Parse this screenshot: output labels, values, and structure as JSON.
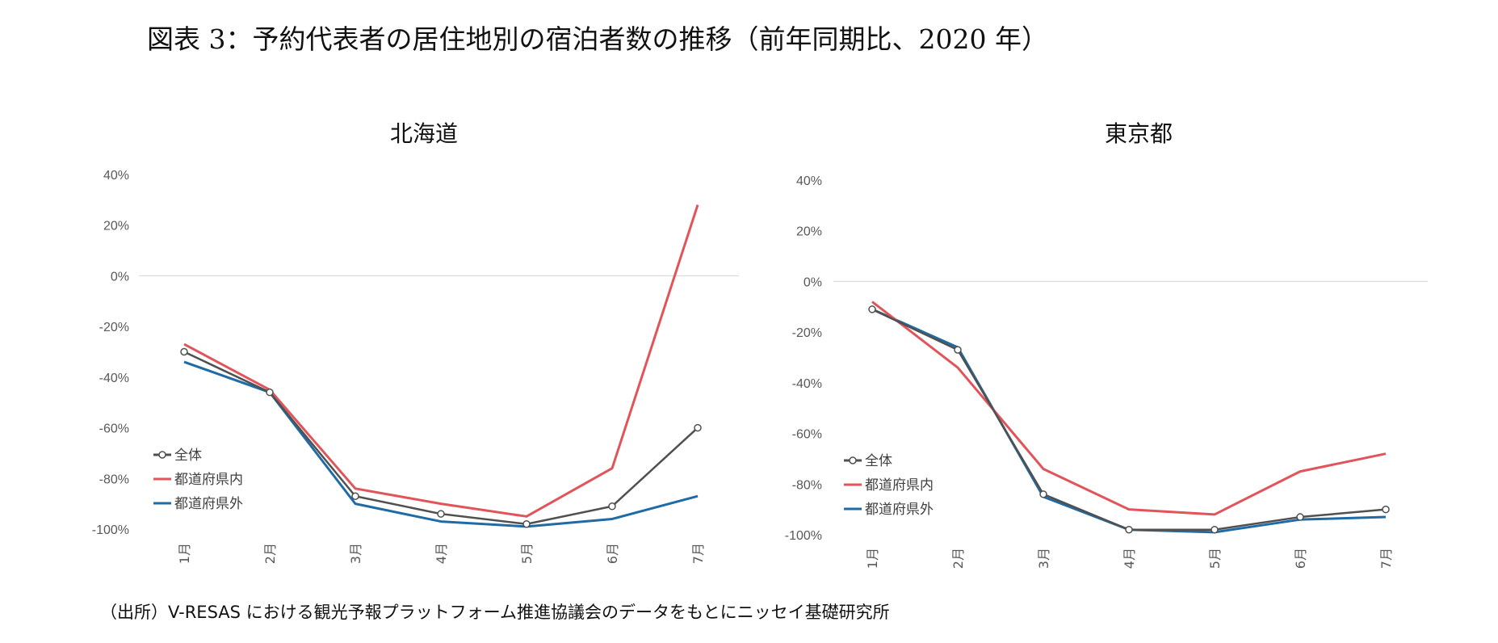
{
  "figure": {
    "title": "図表 3：予約代表者の居住地別の宿泊者数の推移（前年同期比、2020 年）",
    "source": "（出所）V-RESAS における観光予報プラットフォーム推進協議会のデータをもとにニッセイ基礎研究所"
  },
  "chart_data": [
    {
      "type": "line",
      "title": "北海道",
      "categories": [
        "1月",
        "2月",
        "3月",
        "4月",
        "5月",
        "6月",
        "7月"
      ],
      "ylim": [
        -100,
        40
      ],
      "yticks": [
        "40%",
        "20%",
        "0%",
        "-20%",
        "-40%",
        "-60%",
        "-80%",
        "-100%"
      ],
      "grid": "zero-line only",
      "legend_position": "bottom-left",
      "series": [
        {
          "name": "全体",
          "values": [
            -30,
            -46,
            -87,
            -94,
            -98,
            -91,
            -60
          ],
          "color": "#505050",
          "markers": true
        },
        {
          "name": "都道府県内",
          "values": [
            -27,
            -45,
            -84,
            -90,
            -95,
            -76,
            28
          ],
          "color": "#E0545A",
          "markers": false
        },
        {
          "name": "都道府県外",
          "values": [
            -34,
            -46,
            -90,
            -97,
            -99,
            -96,
            -87
          ],
          "color": "#1F6BA5",
          "markers": false
        }
      ]
    },
    {
      "type": "line",
      "title": "東京都",
      "categories": [
        "1月",
        "2月",
        "3月",
        "4月",
        "5月",
        "6月",
        "7月"
      ],
      "ylim": [
        -100,
        40
      ],
      "yticks": [
        "40%",
        "20%",
        "0%",
        "-20%",
        "-40%",
        "-60%",
        "-80%",
        "-100%"
      ],
      "grid": "zero-line only",
      "legend_position": "bottom-left",
      "series": [
        {
          "name": "全体",
          "values": [
            -11,
            -27,
            -84,
            -98,
            -98,
            -93,
            -90
          ],
          "color": "#505050",
          "markers": true
        },
        {
          "name": "都道府県内",
          "values": [
            -8,
            -34,
            -74,
            -90,
            -92,
            -75,
            -68
          ],
          "color": "#E0545A",
          "markers": false
        },
        {
          "name": "都道府県外",
          "values": [
            -11,
            -26,
            -85,
            -98,
            -99,
            -94,
            -93
          ],
          "color": "#1F6BA5",
          "markers": false
        }
      ]
    }
  ]
}
